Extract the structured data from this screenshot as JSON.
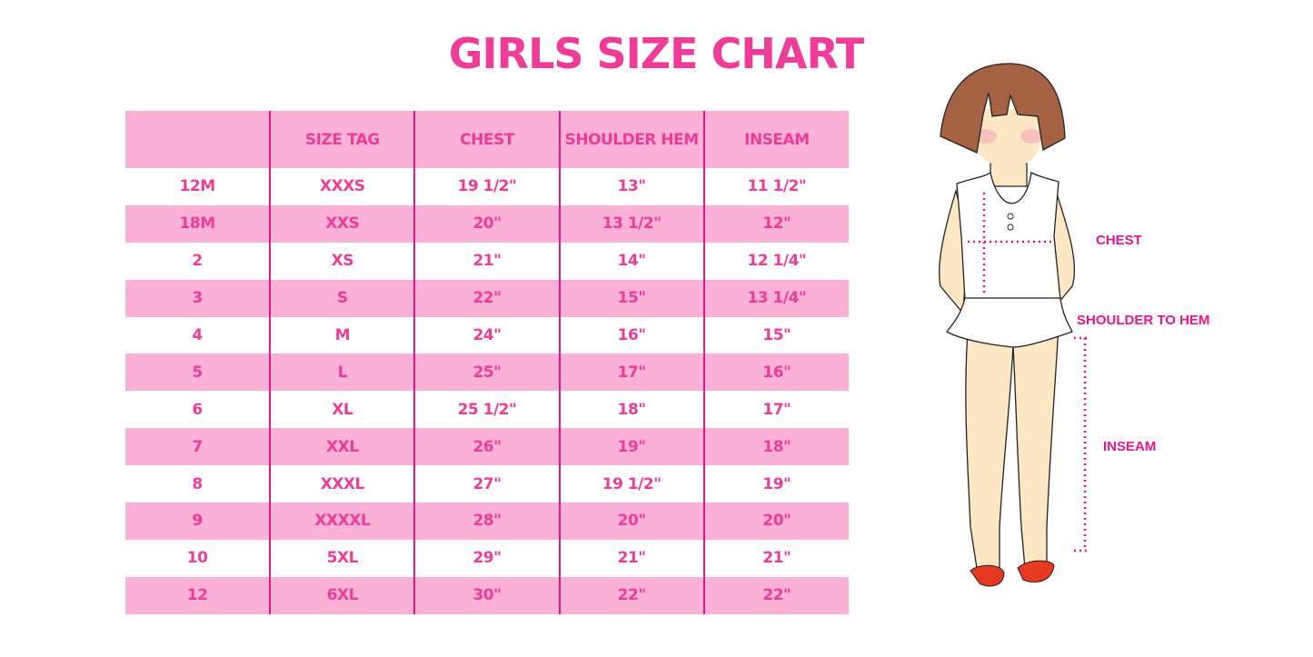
{
  "title": "GIRLS SIZE CHART",
  "table": {
    "headers": [
      "",
      "SIZE TAG",
      "CHEST",
      "SHOULDER HEM",
      "INSEAM"
    ],
    "rows": [
      [
        "12M",
        "XXXS",
        "19 1/2\"",
        "13\"",
        "11 1/2\""
      ],
      [
        "18M",
        "XXS",
        "20\"",
        "13 1/2\"",
        "12\""
      ],
      [
        "2",
        "XS",
        "21\"",
        "14\"",
        "12 1/4\""
      ],
      [
        "3",
        "S",
        "22\"",
        "15\"",
        "13 1/4\""
      ],
      [
        "4",
        "M",
        "24\"",
        "16\"",
        "15\""
      ],
      [
        "5",
        "L",
        "25\"",
        "17\"",
        "16\""
      ],
      [
        "6",
        "XL",
        "25 1/2\"",
        "18\"",
        "17\""
      ],
      [
        "7",
        "XXL",
        "26\"",
        "19\"",
        "18\""
      ],
      [
        "8",
        "XXXL",
        "27\"",
        "19 1/2\"",
        "19\""
      ],
      [
        "9",
        "XXXXL",
        "28\"",
        "20\"",
        "20\""
      ],
      [
        "10",
        "5XL",
        "29\"",
        "21\"",
        "21\""
      ],
      [
        "12",
        "6XL",
        "30\"",
        "22\"",
        "22\""
      ]
    ]
  },
  "figure": {
    "labels": {
      "chest": "CHEST",
      "shoulder_to_hem": "SHOULDER TO HEM",
      "inseam": "INSEAM"
    }
  },
  "colors": {
    "accent": "#ec3d96",
    "stripe": "#fbb0d6",
    "divider": "#e3168a"
  }
}
